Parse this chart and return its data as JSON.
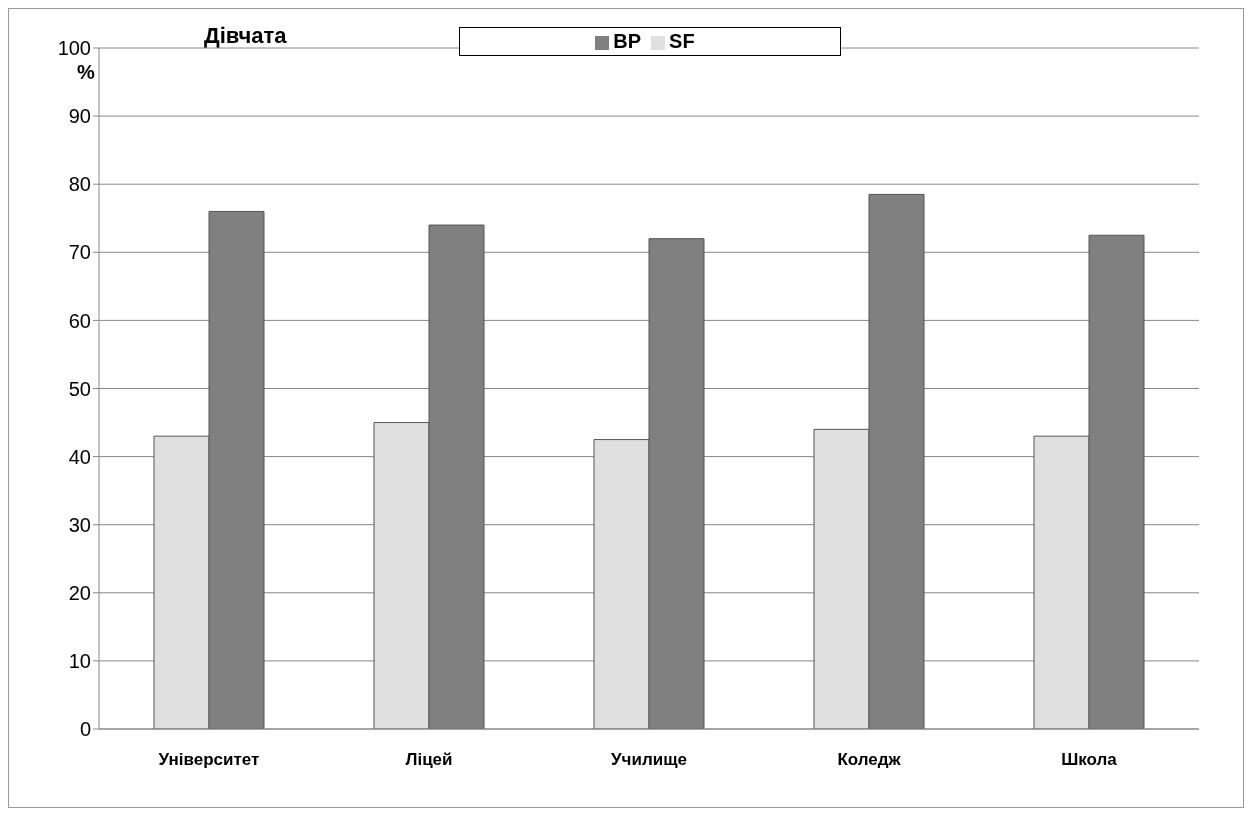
{
  "chart_data": {
    "type": "bar",
    "subtitle": "Дівчата",
    "ylabel": "%",
    "categories": [
      "Університет",
      "Ліцей",
      "Училище",
      "Коледж",
      "Школа"
    ],
    "series": [
      {
        "name": "SF",
        "color": "#e0e0e0",
        "values": [
          43,
          45,
          42.5,
          44,
          43
        ]
      },
      {
        "name": "BP",
        "color": "#808080",
        "values": [
          76,
          74,
          72,
          78.5,
          72.5
        ]
      }
    ],
    "ylim": [
      0,
      100
    ],
    "yticks": [
      0,
      10,
      20,
      30,
      40,
      50,
      60,
      70,
      80,
      90,
      100
    ],
    "grid": "y",
    "legend": "top"
  }
}
